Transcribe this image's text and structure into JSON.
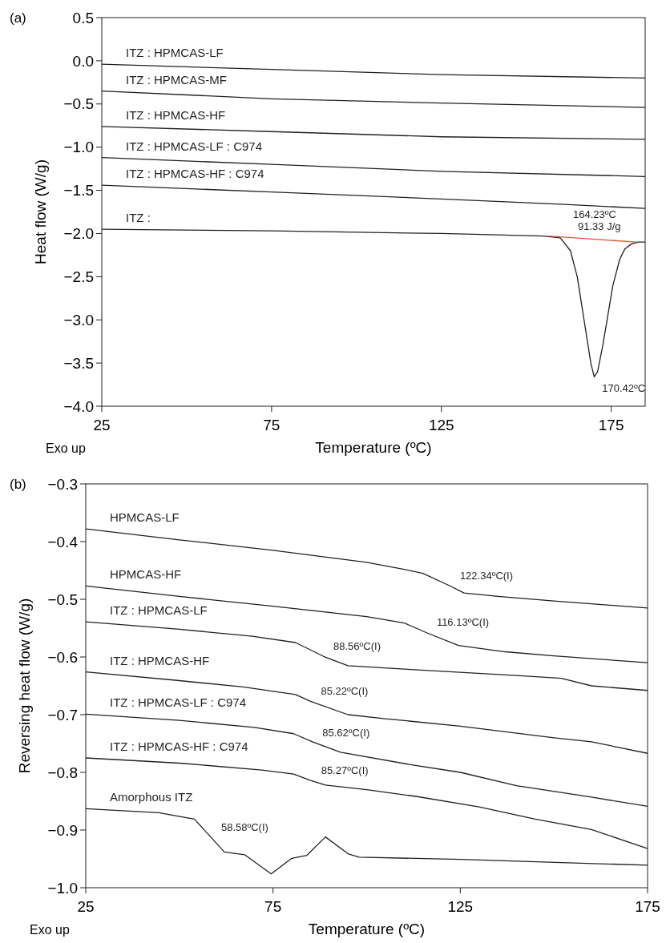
{
  "chart_data": [
    {
      "type": "line",
      "title": "(a)",
      "xlabel": "Temperature (ºC)",
      "ylabel": "Heat flow (W/g)",
      "xlim": [
        25,
        185
      ],
      "ylim": [
        -4.0,
        0.5
      ],
      "xticks": [
        25,
        75,
        125,
        175
      ],
      "yticks": [
        {
          "value": 0.5,
          "label": "0.5"
        },
        {
          "value": 0,
          "label": "0.0"
        },
        {
          "value": -0.5,
          "label": "−0.5"
        },
        {
          "value": -1,
          "label": "−1.0"
        },
        {
          "value": -1.5,
          "label": "−1.5"
        },
        {
          "value": -2,
          "label": "−2.0"
        },
        {
          "value": -2.5,
          "label": "−2.5"
        },
        {
          "value": -3,
          "label": "−3.0"
        },
        {
          "value": -3.5,
          "label": "−3.5"
        },
        {
          "value": -4,
          "label": "−4.0"
        }
      ],
      "series": [
        {
          "name": "ITZ : HPMCAS-LF",
          "color": "#231f20",
          "x": [
            25,
            75,
            125,
            185
          ],
          "values": [
            -0.04,
            -0.1,
            -0.16,
            -0.2
          ]
        },
        {
          "name": "ITZ : HPMCAS-MF",
          "color": "#231f20",
          "x": [
            25,
            75,
            125,
            185
          ],
          "values": [
            -0.35,
            -0.44,
            -0.49,
            -0.54
          ]
        },
        {
          "name": "ITZ : HPMCAS-HF",
          "color": "#231f20",
          "x": [
            25,
            75,
            125,
            185
          ],
          "values": [
            -0.76,
            -0.82,
            -0.88,
            -0.91
          ]
        },
        {
          "name": "ITZ : HPMCAS-LF : C974",
          "color": "#231f20",
          "x": [
            25,
            75,
            125,
            185
          ],
          "values": [
            -1.12,
            -1.2,
            -1.28,
            -1.34
          ]
        },
        {
          "name": "ITZ : HPMCAS-HF : C974",
          "color": "#231f20",
          "x": [
            25,
            75,
            125,
            160,
            185
          ],
          "values": [
            -1.44,
            -1.52,
            -1.6,
            -1.66,
            -1.71
          ]
        },
        {
          "name": "ITZ :",
          "color": "#231f20",
          "x": [
            25,
            75,
            125,
            155,
            160,
            163,
            165,
            167,
            169,
            170,
            171,
            172.5,
            174,
            175.5,
            177.5,
            179,
            181,
            183,
            185
          ],
          "values": [
            -1.95,
            -1.97,
            -2.0,
            -2.03,
            -2.05,
            -2.2,
            -2.5,
            -3.0,
            -3.5,
            -3.66,
            -3.6,
            -3.3,
            -2.95,
            -2.6,
            -2.3,
            -2.18,
            -2.12,
            -2.1,
            -2.1
          ]
        },
        {
          "color": "#e0523a",
          "x": [
            156.5,
            182.5
          ],
          "values": [
            -2.03,
            -2.1
          ]
        }
      ],
      "annotations": [
        {
          "text": "164.23ºC\n91.33 J/g",
          "x": 164.23,
          "y": -2.03
        },
        {
          "text": "170.42ºC",
          "x": 170.42,
          "y": -3.68
        },
        "Exo up"
      ]
    },
    {
      "type": "line",
      "title": "(b)",
      "xlabel": "Temperature (ºC)",
      "ylabel": "Reversing heat flow (W/g)",
      "xlim": [
        25,
        175
      ],
      "ylim": [
        -1.0,
        -0.3
      ],
      "xticks": [
        25,
        75,
        125,
        175
      ],
      "yticks": [
        {
          "value": -0.3,
          "label": "−0.3"
        },
        {
          "value": -0.4,
          "label": "−0.4"
        },
        {
          "value": -0.5,
          "label": "−0.5"
        },
        {
          "value": -0.6,
          "label": "−0.6"
        },
        {
          "value": -0.7,
          "label": "−0.7"
        },
        {
          "value": -0.8,
          "label": "−0.8"
        },
        {
          "value": -0.9,
          "label": "−0.9"
        },
        {
          "value": -1.0,
          "label": "−1.0"
        }
      ],
      "series": [
        {
          "name": "HPMCAS-LF",
          "color": "#231f20",
          "x": [
            25,
            50,
            75,
            100,
            110,
            115,
            122,
            126,
            135,
            150,
            175
          ],
          "values": [
            -0.378,
            -0.397,
            -0.415,
            -0.436,
            -0.448,
            -0.455,
            -0.476,
            -0.489,
            -0.495,
            -0.503,
            -0.515
          ]
        },
        {
          "name": "HPMCAS-HF",
          "color": "#231f20",
          "x": [
            25,
            50,
            75,
            100,
            110,
            116,
            124.5,
            137,
            150,
            175
          ],
          "values": [
            -0.477,
            -0.495,
            -0.512,
            -0.53,
            -0.541,
            -0.558,
            -0.58,
            -0.591,
            -0.598,
            -0.61
          ]
        },
        {
          "name": "ITZ : HPMCAS-LF",
          "color": "#231f20",
          "x": [
            25,
            50,
            69.5,
            81,
            88.5,
            95,
            110,
            140,
            152,
            160,
            175
          ],
          "values": [
            -0.539,
            -0.552,
            -0.564,
            -0.575,
            -0.599,
            -0.615,
            -0.621,
            -0.632,
            -0.637,
            -0.65,
            -0.658
          ]
        },
        {
          "name": "ITZ : HPMCAS-HF",
          "color": "#231f20",
          "x": [
            25,
            50,
            67,
            81,
            85,
            95,
            105,
            125,
            150,
            160,
            175
          ],
          "values": [
            -0.626,
            -0.641,
            -0.652,
            -0.665,
            -0.677,
            -0.7,
            -0.707,
            -0.72,
            -0.74,
            -0.747,
            -0.767
          ]
        },
        {
          "name": "ITZ : HPMCAS-LF : C974",
          "color": "#231f20",
          "x": [
            25,
            50,
            70,
            80.5,
            85.5,
            93,
            112,
            125,
            140,
            160,
            175
          ],
          "values": [
            -0.699,
            -0.71,
            -0.722,
            -0.733,
            -0.747,
            -0.765,
            -0.787,
            -0.8,
            -0.823,
            -0.843,
            -0.859
          ]
        },
        {
          "name": "ITZ : HPMCAS-HF : C974",
          "color": "#231f20",
          "x": [
            25,
            50,
            72,
            80.5,
            85,
            89,
            100,
            113.5,
            130,
            145,
            160,
            175
          ],
          "values": [
            -0.775,
            -0.784,
            -0.796,
            -0.803,
            -0.814,
            -0.822,
            -0.83,
            -0.842,
            -0.86,
            -0.881,
            -0.899,
            -0.932
          ]
        },
        {
          "name": "Amorphous ITZ",
          "color": "#231f20",
          "x": [
            25,
            44.5,
            54,
            58.5,
            62,
            67.5,
            74.5,
            80,
            84,
            89,
            95,
            98,
            125,
            175
          ],
          "values": [
            -0.863,
            -0.87,
            -0.881,
            -0.913,
            -0.938,
            -0.943,
            -0.976,
            -0.949,
            -0.944,
            -0.912,
            -0.941,
            -0.947,
            -0.951,
            -0.961
          ]
        }
      ],
      "annotations": [
        {
          "text": "122.34ºC(I)",
          "x": 122.34,
          "y": -0.477
        },
        {
          "text": "116.13ºC(I)",
          "x": 116.13,
          "y": -0.557
        },
        {
          "text": "88.56ºC(I)",
          "x": 88.56,
          "y": -0.599
        },
        {
          "text": "85.22ºC(I)",
          "x": 85.22,
          "y": -0.677
        },
        {
          "text": "85.62ºC(I)",
          "x": 85.62,
          "y": -0.748
        },
        {
          "text": "85.27ºC(I)",
          "x": 85.27,
          "y": -0.814
        },
        {
          "text": "58.58ºC(I)",
          "x": 58.58,
          "y": -0.913
        },
        "Exo up"
      ]
    }
  ]
}
